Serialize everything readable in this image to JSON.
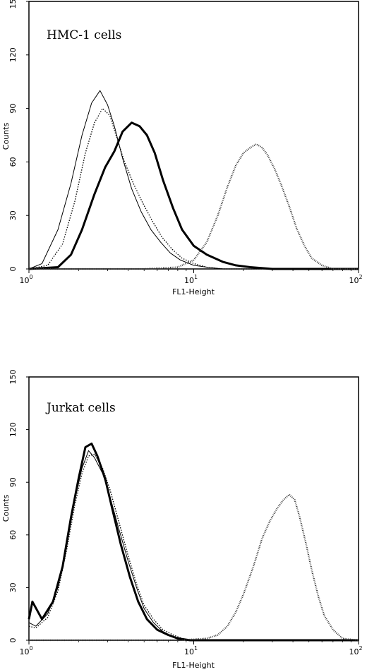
{
  "chart_data": [
    {
      "type": "line",
      "title": "HMC-1 cells",
      "xlabel": "FL1-Height",
      "ylabel": "Counts",
      "xscale": "log",
      "xlim": [
        1,
        100
      ],
      "ylim": [
        0,
        150
      ],
      "yticks": [
        "0",
        "30",
        "60",
        "90",
        "120",
        "150"
      ],
      "xticks": [
        {
          "base": "10",
          "exp": "0"
        },
        {
          "base": "10",
          "exp": "1"
        },
        {
          "base": "10",
          "exp": "2"
        }
      ],
      "grid": false,
      "series": [
        {
          "style": "thin",
          "x": [
            1.0,
            1.2,
            1.5,
            1.8,
            2.1,
            2.4,
            2.7,
            3.0,
            3.3,
            3.7,
            4.2,
            4.8,
            5.5,
            6.3,
            7.2,
            8.3,
            10,
            12,
            15,
            20,
            30,
            50,
            100
          ],
          "y": [
            0,
            3,
            22,
            48,
            75,
            93,
            100,
            92,
            80,
            62,
            45,
            32,
            22,
            15,
            9,
            5,
            2,
            1,
            0,
            0,
            0,
            0,
            0
          ]
        },
        {
          "style": "dotted",
          "x": [
            1.0,
            1.3,
            1.6,
            1.9,
            2.2,
            2.5,
            2.8,
            3.1,
            3.4,
            3.8,
            4.3,
            4.9,
            5.6,
            6.4,
            7.4,
            8.5,
            10,
            12,
            15,
            20,
            30,
            50,
            100
          ],
          "y": [
            0,
            2,
            14,
            38,
            65,
            82,
            90,
            86,
            74,
            60,
            48,
            37,
            27,
            18,
            11,
            6,
            3,
            1,
            0,
            0,
            0,
            0,
            0
          ]
        },
        {
          "style": "thick",
          "x": [
            1.0,
            1.5,
            1.8,
            2.1,
            2.5,
            2.9,
            3.3,
            3.7,
            4.2,
            4.7,
            5.2,
            5.8,
            6.5,
            7.5,
            8.5,
            10,
            12,
            15,
            18,
            22,
            30,
            50,
            100
          ],
          "y": [
            0,
            1,
            8,
            22,
            42,
            57,
            66,
            77,
            82,
            80,
            75,
            65,
            50,
            34,
            22,
            13,
            8,
            4,
            2,
            1,
            0,
            0,
            0
          ]
        },
        {
          "style": "hatched",
          "x": [
            1.0,
            5,
            8,
            10,
            12,
            14,
            16,
            18,
            20,
            22,
            24,
            26,
            28,
            31,
            34,
            38,
            42,
            47,
            52,
            60,
            70,
            100
          ],
          "y": [
            0,
            0,
            1,
            5,
            15,
            30,
            46,
            58,
            65,
            68,
            70,
            68,
            64,
            56,
            47,
            35,
            23,
            13,
            6,
            2,
            0,
            0
          ]
        }
      ]
    },
    {
      "type": "line",
      "title": "Jurkat cells",
      "xlabel": "FL1-Height",
      "ylabel": "Counts",
      "xscale": "log",
      "xlim": [
        1,
        100
      ],
      "ylim": [
        0,
        150
      ],
      "yticks": [
        "0",
        "30",
        "60",
        "90",
        "120",
        "150"
      ],
      "xticks": [
        {
          "base": "10",
          "exp": "0"
        },
        {
          "base": "10",
          "exp": "1"
        },
        {
          "base": "10",
          "exp": "2"
        }
      ],
      "grid": false,
      "series": [
        {
          "style": "thin",
          "x": [
            1.0,
            1.1,
            1.3,
            1.5,
            1.7,
            1.9,
            2.1,
            2.3,
            2.5,
            2.8,
            3.1,
            3.5,
            4.0,
            4.5,
            5.0,
            5.7,
            6.5,
            7.5,
            8.5,
            10,
            12,
            20,
            100
          ],
          "y": [
            10,
            8,
            15,
            30,
            55,
            80,
            98,
            108,
            104,
            95,
            82,
            64,
            45,
            30,
            18,
            10,
            5,
            2,
            1,
            0,
            0,
            0,
            0
          ]
        },
        {
          "style": "dotted",
          "x": [
            1.0,
            1.1,
            1.3,
            1.5,
            1.7,
            1.9,
            2.1,
            2.3,
            2.5,
            2.8,
            3.1,
            3.5,
            4.0,
            4.5,
            5.0,
            5.7,
            6.5,
            7.5,
            8.5,
            10,
            12,
            20,
            100
          ],
          "y": [
            8,
            7,
            13,
            28,
            52,
            77,
            95,
            105,
            106,
            98,
            86,
            68,
            48,
            32,
            20,
            12,
            6,
            3,
            1,
            0,
            0,
            0,
            0
          ]
        },
        {
          "style": "thick",
          "x": [
            1.0,
            1.05,
            1.2,
            1.4,
            1.6,
            1.8,
            2.0,
            2.2,
            2.4,
            2.6,
            2.9,
            3.2,
            3.6,
            4.1,
            4.6,
            5.2,
            6.0,
            7.0,
            8.0,
            9.5,
            12,
            20,
            100
          ],
          "y": [
            12,
            22,
            12,
            22,
            42,
            70,
            92,
            110,
            112,
            105,
            92,
            75,
            55,
            36,
            22,
            12,
            6,
            3,
            1,
            0,
            0,
            0,
            0
          ]
        },
        {
          "style": "hatched",
          "x": [
            1.0,
            8,
            12,
            14,
            16,
            18,
            20,
            23,
            26,
            29,
            32,
            35,
            38,
            41,
            44,
            48,
            52,
            57,
            62,
            70,
            80,
            100
          ],
          "y": [
            0,
            0,
            1,
            3,
            8,
            16,
            26,
            42,
            58,
            68,
            75,
            80,
            83,
            80,
            70,
            55,
            40,
            25,
            14,
            6,
            1,
            0
          ]
        }
      ]
    }
  ]
}
